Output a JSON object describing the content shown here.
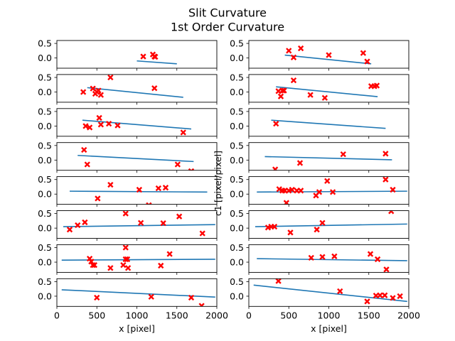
{
  "figure": {
    "title": "Slit Curvature",
    "subtitle": "1st Order Curvature",
    "ylabel": "c1 [pixel/pixel]",
    "xlabel": "x [pixel]"
  },
  "colors": {
    "fit": "#1f77b4",
    "points": "#ff0000"
  },
  "chart_data": {
    "type": "scatter",
    "layout": "8 rows x 2 columns of subplots",
    "xlim": [
      0,
      2000
    ],
    "xticks": [
      0,
      500,
      1000,
      1500,
      2000
    ],
    "ylim": [
      -0.35,
      0.6
    ],
    "yticks": [
      0.5,
      0.0
    ],
    "tick_format": "0.0",
    "panels": [
      {
        "fit": [
          [
            1000,
            -0.1
          ],
          [
            1500,
            -0.2
          ]
        ],
        "points": [
          [
            1080,
            0.05
          ],
          [
            1200,
            0.12
          ],
          [
            1220,
            0.05
          ],
          [
            1230,
            0.04
          ]
        ]
      },
      {
        "fit": [
          [
            450,
            0.1
          ],
          [
            1530,
            -0.2
          ]
        ],
        "points": [
          [
            500,
            0.25
          ],
          [
            560,
            0.02
          ],
          [
            650,
            0.33
          ],
          [
            1000,
            0.1
          ],
          [
            1430,
            0.17
          ],
          [
            1480,
            -0.12
          ]
        ]
      },
      {
        "fit": [
          [
            380,
            0.15
          ],
          [
            1580,
            -0.18
          ]
        ],
        "points": [
          [
            330,
            0.0
          ],
          [
            450,
            0.12
          ],
          [
            480,
            -0.06
          ],
          [
            500,
            0.0
          ],
          [
            520,
            0.05
          ],
          [
            550,
            -0.1
          ],
          [
            670,
            0.5
          ],
          [
            1220,
            0.13
          ]
        ]
      },
      {
        "fit": [
          [
            340,
            0.18
          ],
          [
            1610,
            -0.16
          ]
        ],
        "points": [
          [
            370,
            0.03
          ],
          [
            400,
            -0.15
          ],
          [
            420,
            0.05
          ],
          [
            440,
            0.05
          ],
          [
            560,
            0.4
          ],
          [
            770,
            -0.1
          ],
          [
            950,
            -0.2
          ],
          [
            1530,
            0.2
          ],
          [
            1570,
            0.2
          ],
          [
            1600,
            0.22
          ]
        ]
      },
      {
        "fit": [
          [
            320,
            0.2
          ],
          [
            1680,
            -0.1
          ]
        ],
        "points": [
          [
            360,
            0.0
          ],
          [
            410,
            -0.05
          ],
          [
            530,
            0.28
          ],
          [
            550,
            0.05
          ],
          [
            650,
            0.08
          ],
          [
            760,
            0.02
          ],
          [
            1580,
            -0.22
          ]
        ]
      },
      {
        "fit": [
          [
            280,
            0.2
          ],
          [
            1710,
            -0.08
          ]
        ],
        "points": [
          [
            340,
            0.08
          ]
        ]
      },
      {
        "fit": [
          [
            260,
            0.16
          ],
          [
            1710,
            -0.05
          ]
        ],
        "points": [
          [
            340,
            0.35
          ],
          [
            380,
            -0.15
          ],
          [
            1510,
            -0.15
          ],
          [
            1680,
            -0.38
          ]
        ]
      },
      {
        "fit": [
          [
            200,
            0.12
          ],
          [
            1790,
            0.01
          ]
        ],
        "points": [
          [
            330,
            -0.32
          ],
          [
            640,
            -0.1
          ],
          [
            1180,
            0.2
          ],
          [
            1710,
            0.22
          ]
        ]
      },
      {
        "fit": [
          [
            160,
            0.1
          ],
          [
            1880,
            0.07
          ]
        ],
        "points": [
          [
            510,
            -0.15
          ],
          [
            670,
            0.32
          ],
          [
            1030,
            0.15
          ],
          [
            1150,
            -0.38
          ],
          [
            1270,
            0.2
          ],
          [
            1360,
            0.22
          ]
        ]
      },
      {
        "fit": [
          [
            100,
            0.07
          ],
          [
            1980,
            0.1
          ]
        ],
        "points": [
          [
            380,
            0.17
          ],
          [
            420,
            0.12
          ],
          [
            450,
            0.12
          ],
          [
            470,
            -0.3
          ],
          [
            500,
            0.12
          ],
          [
            540,
            0.15
          ],
          [
            600,
            0.12
          ],
          [
            650,
            0.12
          ],
          [
            840,
            -0.05
          ],
          [
            880,
            0.07
          ],
          [
            980,
            0.45
          ],
          [
            1050,
            0.07
          ],
          [
            1710,
            0.5
          ],
          [
            1800,
            0.15
          ]
        ]
      },
      {
        "fit": [
          [
            80,
            0.05
          ],
          [
            1980,
            0.12
          ]
        ],
        "points": [
          [
            160,
            -0.05
          ],
          [
            260,
            0.1
          ],
          [
            350,
            0.2
          ],
          [
            860,
            0.5
          ],
          [
            1050,
            0.18
          ],
          [
            1330,
            0.17
          ],
          [
            1530,
            0.4
          ],
          [
            1820,
            -0.18
          ]
        ]
      },
      {
        "fit": [
          [
            80,
            0.05
          ],
          [
            1980,
            0.14
          ]
        ],
        "points": [
          [
            240,
            0.02
          ],
          [
            280,
            0.05
          ],
          [
            320,
            0.05
          ],
          [
            520,
            -0.15
          ],
          [
            850,
            -0.05
          ],
          [
            920,
            0.18
          ],
          [
            1780,
            0.58
          ]
        ]
      },
      {
        "fit": [
          [
            60,
            0.07
          ],
          [
            1980,
            0.1
          ]
        ],
        "points": [
          [
            410,
            0.12
          ],
          [
            430,
            0.02
          ],
          [
            450,
            -0.1
          ],
          [
            470,
            -0.1
          ],
          [
            670,
            -0.2
          ],
          [
            830,
            -0.1
          ],
          [
            860,
            0.5
          ],
          [
            860,
            0.1
          ],
          [
            880,
            0.1
          ],
          [
            890,
            -0.2
          ],
          [
            1300,
            -0.12
          ],
          [
            1410,
            0.28
          ]
        ]
      },
      {
        "fit": [
          [
            100,
            0.12
          ],
          [
            1980,
            0.05
          ]
        ],
        "points": [
          [
            780,
            0.15
          ],
          [
            920,
            0.18
          ],
          [
            1070,
            0.2
          ],
          [
            1520,
            0.28
          ],
          [
            1610,
            0.1
          ],
          [
            1720,
            -0.25
          ]
        ]
      },
      {
        "fit": [
          [
            60,
            0.22
          ],
          [
            1980,
            -0.03
          ]
        ],
        "points": [
          [
            500,
            -0.05
          ],
          [
            1180,
            -0.02
          ],
          [
            1680,
            -0.05
          ],
          [
            1810,
            -0.33
          ]
        ]
      },
      {
        "fit": [
          [
            60,
            0.38
          ],
          [
            1980,
            -0.18
          ]
        ],
        "points": [
          [
            370,
            0.52
          ],
          [
            1140,
            0.17
          ],
          [
            1480,
            -0.18
          ],
          [
            1590,
            0.02
          ],
          [
            1640,
            0.03
          ],
          [
            1700,
            0.03
          ],
          [
            1800,
            -0.06
          ],
          [
            1890,
            0.0
          ]
        ]
      }
    ]
  }
}
